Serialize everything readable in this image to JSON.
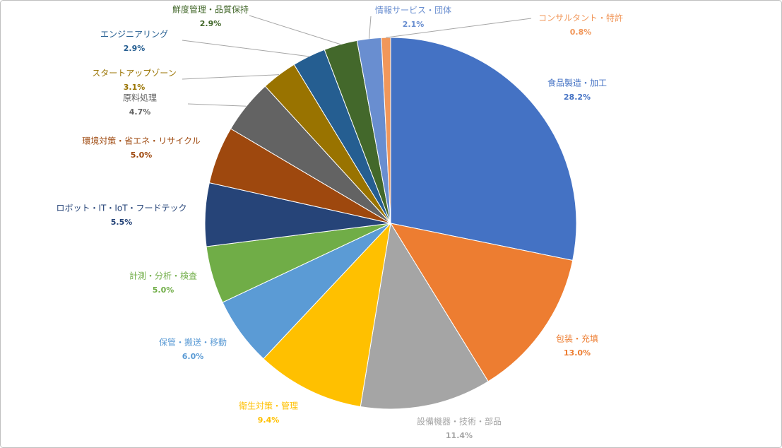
{
  "chart_data": {
    "type": "pie",
    "categories": [
      "食品製造・加工",
      "包装・充填",
      "設備機器・技術・部品",
      "衛生対策・管理",
      "保管・搬送・移動",
      "計測・分析・検査",
      "ロボット・IT・IoT・フードテック",
      "環境対策・省エネ・リサイクル",
      "原料処理",
      "スタートアップゾーン",
      "エンジニアリング",
      "鮮度管理・品質保持",
      "情報サービス・団体",
      "コンサルタント・特許"
    ],
    "values": [
      28.2,
      13.0,
      11.4,
      9.4,
      6.0,
      5.0,
      5.5,
      5.0,
      4.7,
      3.1,
      2.9,
      2.9,
      2.1,
      0.8
    ],
    "value_labels": [
      "28.2%",
      "13.0%",
      "11.4%",
      "9.4%",
      "6.0%",
      "5.0%",
      "5.5%",
      "5.0%",
      "4.7%",
      "3.1%",
      "2.9%",
      "2.9%",
      "2.1%",
      "0.8%"
    ],
    "colors": [
      "#4472c4",
      "#ed7d31",
      "#a5a5a5",
      "#ffc000",
      "#5b9bd5",
      "#70ad47",
      "#264478",
      "#9e480e",
      "#636363",
      "#997300",
      "#255e91",
      "#43682b",
      "#698ed0",
      "#f1975a"
    ]
  }
}
